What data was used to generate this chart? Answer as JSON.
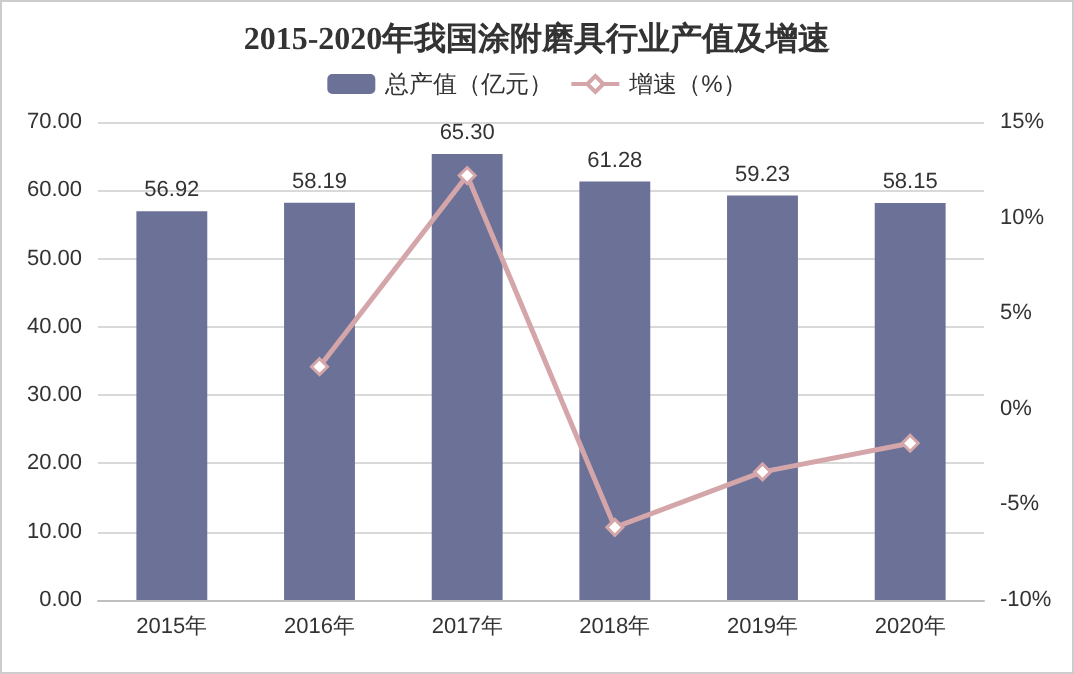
{
  "chart_data": {
    "type": "bar",
    "title": "2015-2020年我国涂附磨具行业产值及增速",
    "categories": [
      "2015年",
      "2016年",
      "2017年",
      "2018年",
      "2019年",
      "2020年"
    ],
    "series": [
      {
        "name": "总产值（亿元）",
        "color": "#6b7197",
        "values": [
          56.92,
          58.19,
          65.3,
          61.28,
          59.23,
          58.15
        ],
        "value_labels": [
          "56.92",
          "58.19",
          "65.30",
          "61.28",
          "59.23",
          "58.15"
        ]
      },
      {
        "name": "增速（%）",
        "type": "line",
        "axis": "y2",
        "color": "#d4a5a9",
        "marker": "diamond",
        "values": [
          null,
          2.2,
          12.2,
          -6.2,
          -3.3,
          -1.8
        ]
      }
    ],
    "ylim": [
      0,
      70
    ],
    "yticks": [
      {
        "value": 0,
        "label": "0.00"
      },
      {
        "value": 10,
        "label": "10.00"
      },
      {
        "value": 20,
        "label": "20.00"
      },
      {
        "value": 30,
        "label": "30.00"
      },
      {
        "value": 40,
        "label": "40.00"
      },
      {
        "value": 50,
        "label": "50.00"
      },
      {
        "value": 60,
        "label": "60.00"
      },
      {
        "value": 70,
        "label": "70.00"
      }
    ],
    "y2lim": [
      -10,
      15
    ],
    "y2ticks": [
      {
        "value": -10,
        "label": "-10%"
      },
      {
        "value": -5,
        "label": "-5%"
      },
      {
        "value": 0,
        "label": "0%"
      },
      {
        "value": 5,
        "label": "5%"
      },
      {
        "value": 10,
        "label": "10%"
      },
      {
        "value": 15,
        "label": "15%"
      }
    ],
    "grid": "y",
    "legend": "top"
  }
}
